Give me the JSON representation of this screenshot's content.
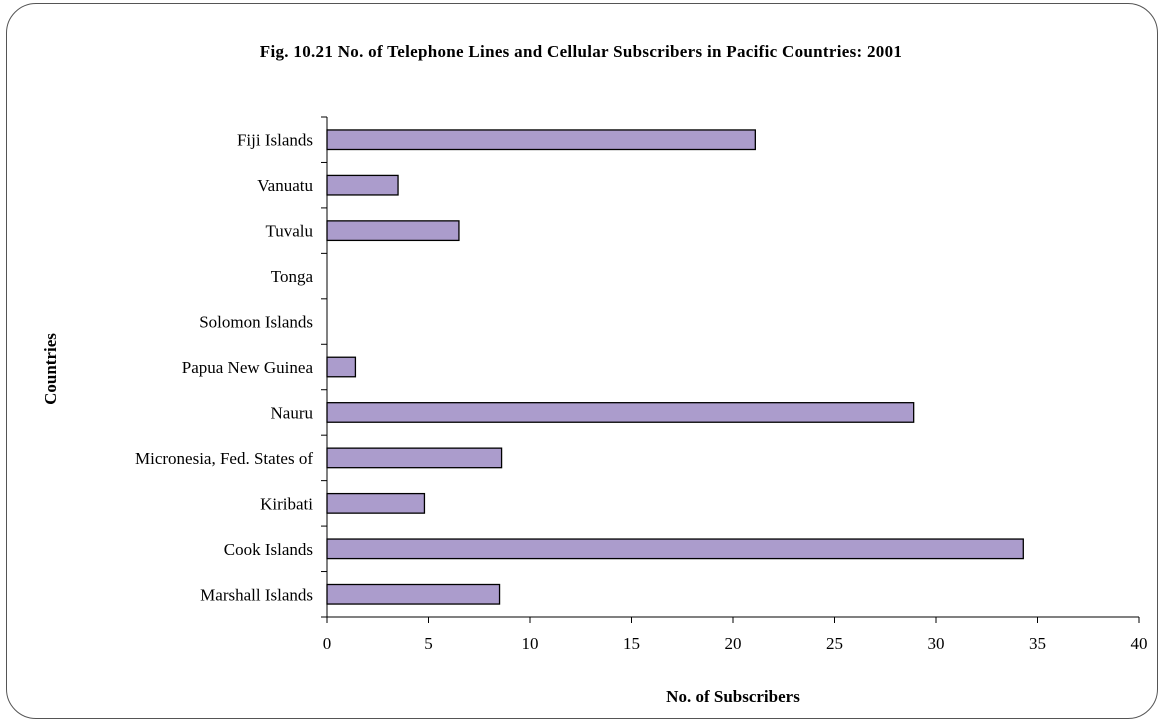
{
  "chart_data": {
    "type": "bar",
    "orientation": "horizontal",
    "title": "Fig.  10.21  No. of Telephone Lines  and Cellular Subscribers in Pacific Countries:   2001",
    "xlabel": "No. of Subscribers",
    "ylabel": "Countries",
    "categories": [
      "Fiji Islands",
      "Vanuatu",
      "Tuvalu",
      "Tonga",
      "Solomon Islands",
      "Papua New Guinea",
      "Nauru",
      "Micronesia, Fed. States of",
      "Kiribati",
      "Cook Islands",
      "Marshall Islands"
    ],
    "values": [
      21.1,
      3.5,
      6.5,
      0,
      0,
      1.4,
      28.9,
      8.6,
      4.8,
      34.3,
      8.5
    ],
    "xlim": [
      0,
      40
    ],
    "xticks": [
      0,
      5,
      10,
      15,
      20,
      25,
      30,
      35,
      40
    ],
    "grid": false,
    "bar_color": "#ab9ccc"
  }
}
